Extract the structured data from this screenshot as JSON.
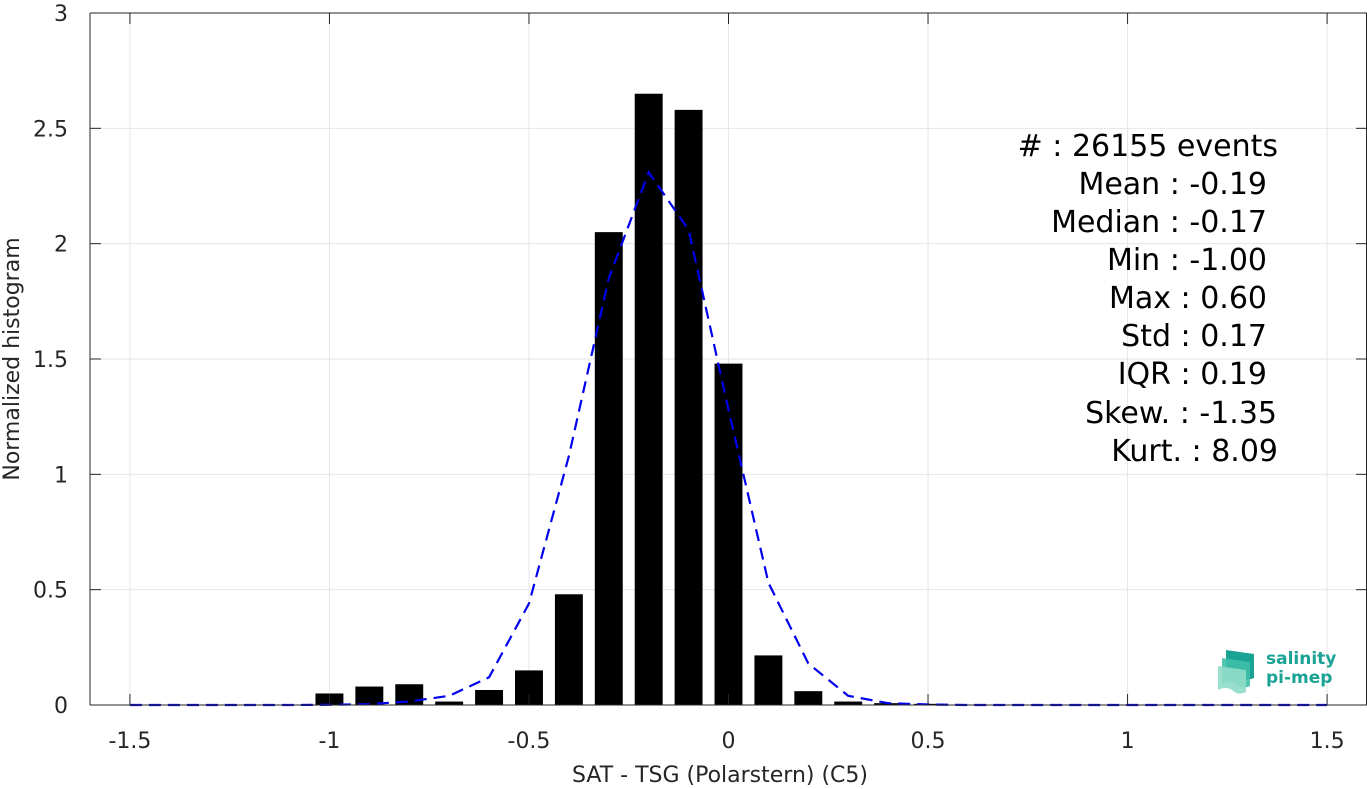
{
  "chart_data": {
    "type": "bar",
    "xlabel": "SAT - TSG (Polarstern) (C5)",
    "ylabel": "Normalized histogram",
    "xlim": [
      -1.6,
      1.6
    ],
    "ylim": [
      0,
      3
    ],
    "x_ticks": [
      -1.5,
      -1,
      -0.5,
      0,
      0.5,
      1,
      1.5
    ],
    "x_tick_labels": [
      "-1.5",
      "-1",
      "-0.5",
      "0",
      "0.5",
      "1",
      "1.5"
    ],
    "y_ticks": [
      0,
      0.5,
      1,
      1.5,
      2,
      2.5,
      3
    ],
    "y_tick_labels": [
      "0",
      "0.5",
      "1",
      "1.5",
      "2",
      "2.5",
      "3"
    ],
    "grid": true,
    "bar_width": 0.07,
    "series": [
      {
        "type": "bar",
        "color": "#000000",
        "x": [
          -1.0,
          -0.9,
          -0.8,
          -0.7,
          -0.6,
          -0.5,
          -0.4,
          -0.3,
          -0.2,
          -0.1,
          0.0,
          0.1,
          0.2,
          0.3,
          0.4,
          0.5
        ],
        "values": [
          0.05,
          0.08,
          0.09,
          0.015,
          0.065,
          0.15,
          0.48,
          2.05,
          2.65,
          2.58,
          1.48,
          0.215,
          0.06,
          0.015,
          0.008,
          0.005
        ]
      },
      {
        "type": "line",
        "style": "dashed",
        "color": "#0000ee",
        "x": [
          -1.5,
          -1.4,
          -1.3,
          -1.2,
          -1.1,
          -1.0,
          -0.9,
          -0.8,
          -0.7,
          -0.6,
          -0.5,
          -0.4,
          -0.3,
          -0.2,
          -0.1,
          0.0,
          0.1,
          0.2,
          0.3,
          0.4,
          0.5,
          0.6,
          0.7,
          0.8,
          0.9,
          1.0,
          1.1,
          1.2,
          1.3,
          1.4,
          1.5
        ],
        "values": [
          0,
          0,
          0,
          0,
          0,
          0.001,
          0.004,
          0.015,
          0.04,
          0.12,
          0.44,
          1.08,
          1.85,
          2.31,
          2.06,
          1.28,
          0.53,
          0.18,
          0.04,
          0.008,
          0.002,
          0,
          0,
          0,
          0,
          0,
          0,
          0,
          0,
          0,
          0
        ]
      }
    ],
    "stats": {
      "count": "#  : 26155 events",
      "mean": "Mean : -0.19",
      "median": "Median : -0.17",
      "min": "Min : -1.00",
      "max": "Max : 0.60",
      "std": "Std : 0.17",
      "iqr": "IQR : 0.19",
      "skew": "Skew. : -1.35",
      "kurt": "Kurt. : 8.09"
    }
  },
  "logo": {
    "line1": "salinity",
    "line2": "pi-mep"
  }
}
